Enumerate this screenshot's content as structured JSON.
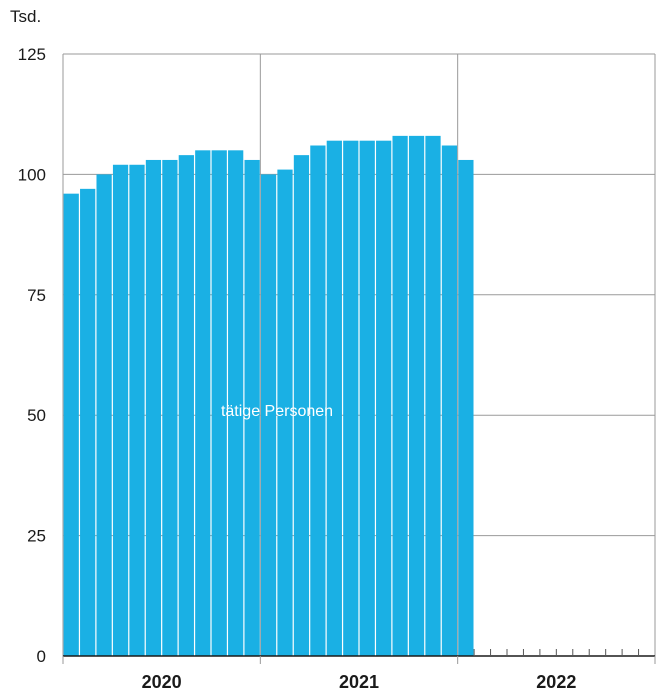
{
  "chart_data": {
    "type": "bar",
    "unit": "Tsd.",
    "ylim": [
      0,
      125
    ],
    "yticks": [
      0,
      25,
      50,
      75,
      100,
      125
    ],
    "grid": true,
    "bar_color": "#1ab0e4",
    "grid_color": "#9a9a9a",
    "years": [
      "2020",
      "2021",
      "2022"
    ],
    "months_per_year": 12,
    "series": [
      {
        "name": "tätige Personen",
        "values": [
          96,
          97,
          100,
          102,
          102,
          103,
          103,
          104,
          105,
          105,
          105,
          103,
          100,
          101,
          104,
          106,
          107,
          107,
          107,
          107,
          108,
          108,
          108,
          106,
          103
        ]
      }
    ]
  }
}
